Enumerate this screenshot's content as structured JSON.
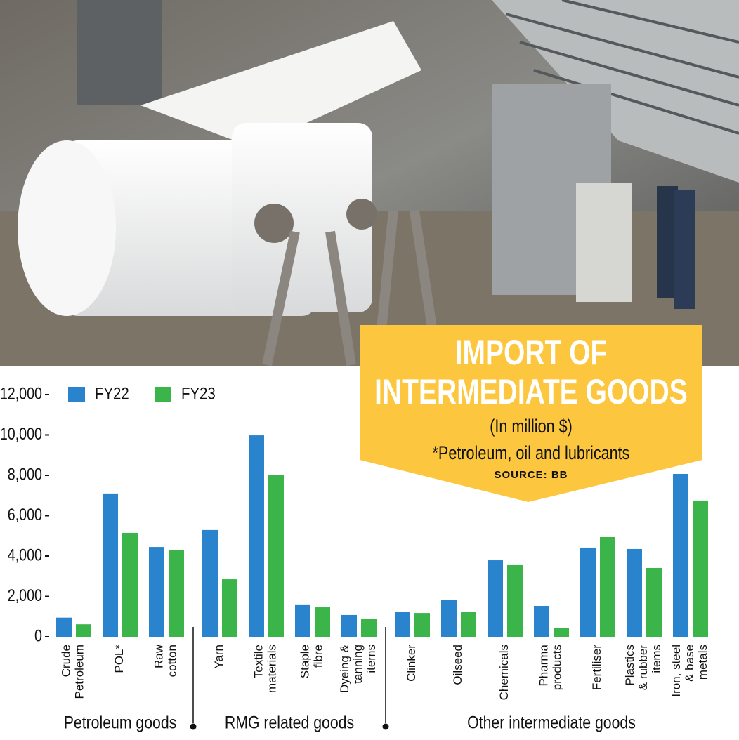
{
  "chart_data": {
    "type": "bar",
    "title": "IMPORT OF INTERMEDIATE GOODS",
    "subtitle": "(In million $)",
    "note": "*Petroleum, oil and lubricants",
    "source": "SOURCE: BB",
    "categories": [
      "Crude\nPetroleum",
      "POL*",
      "Raw\ncotton",
      "Yarn",
      "Textile\nmaterials",
      "Staple\nfibre",
      "Dyeing &\ntanning\nitems",
      "Clinker",
      "Oilseed",
      "Chemicals",
      "Pharma\nproducts",
      "Fertiliser",
      "Plastics\n& rubber\nitems",
      "Iron, steel\n& base\nmetals"
    ],
    "groups": [
      {
        "name": "Petroleum goods",
        "size": 3
      },
      {
        "name": "RMG related goods",
        "size": 4
      },
      {
        "name": "Other intermediate goods",
        "size": 7
      }
    ],
    "series": [
      {
        "name": "FY22",
        "color": "#2a84cd",
        "values": [
          950,
          7100,
          4450,
          5290,
          9980,
          1570,
          1080,
          1250,
          1810,
          3790,
          1530,
          4420,
          4350,
          8070
        ]
      },
      {
        "name": "FY23",
        "color": "#3bb54a",
        "values": [
          620,
          5150,
          4280,
          2850,
          8000,
          1460,
          870,
          1180,
          1250,
          3550,
          420,
          4940,
          3410,
          6750
        ]
      }
    ],
    "ylim": [
      0,
      12000
    ],
    "yticks": [
      0,
      {
        "value": 2000,
        "label": "2,000"
      },
      {
        "value": 4000,
        "label": "4,000"
      },
      {
        "value": 6000,
        "label": "6,000"
      },
      {
        "value": 8000,
        "label": "8,000"
      },
      {
        "value": 10000,
        "label": "10,000"
      },
      {
        "value": 12000,
        "label": "12,000"
      }
    ],
    "legend": "top-left"
  }
}
